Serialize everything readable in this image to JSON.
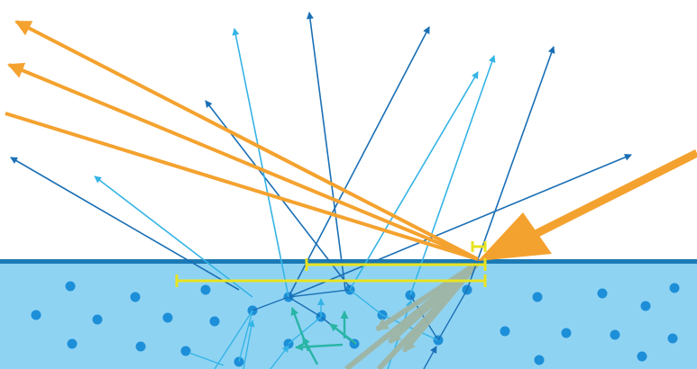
{
  "colors": {
    "background": "#ffffff",
    "medium": "#8fd3f3",
    "surface": "#1b7ab5",
    "particle": "#1d8fd8",
    "incident_ray": "#f4a22f",
    "specular_ray": "#f4a22f",
    "diffuse_ray_dark": "#1a6fb5",
    "diffuse_ray_light": "#35b4e6",
    "subsurface_ray": "#2ab5a6",
    "subsurface_ray_muted": "#9fb5a3",
    "scale_marker": "#e8e320"
  },
  "diagram": {
    "subject": "light-scattering",
    "incident_beam_count": 1,
    "specular_reflection_count": 3,
    "distance_marker_count": 3
  }
}
